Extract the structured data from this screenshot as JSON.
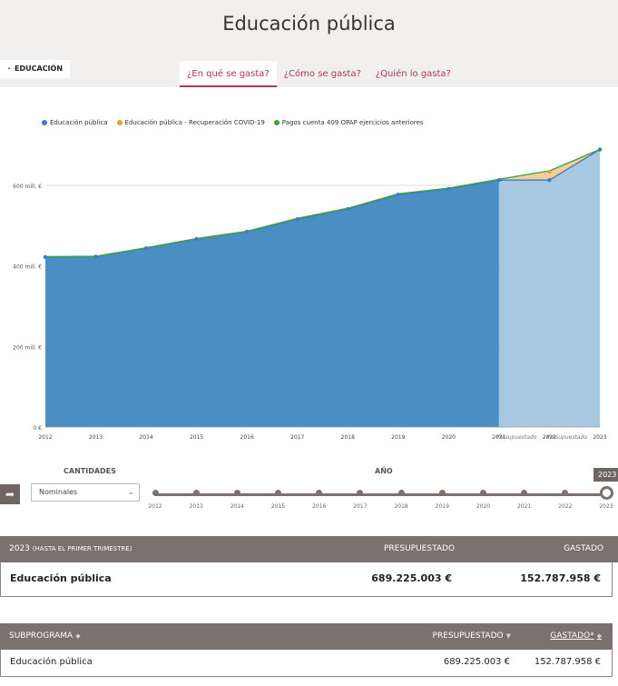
{
  "header": {
    "title": "Educación pública",
    "breadcrumb": "EDUCACIÓN",
    "tabs": [
      {
        "label": "¿En qué se gasta?",
        "active": true
      },
      {
        "label": "¿Cómo se gasta?",
        "active": false
      },
      {
        "label": "¿Quién lo gasta?",
        "active": false
      }
    ]
  },
  "colors": {
    "accent": "#b4345b",
    "series_main": "#3d7fc0",
    "series_covid": "#f59a2e",
    "series_opap": "#3fa33a",
    "area_actual": "#4a8ec4",
    "area_budget": "#a8c8e2",
    "panel": "#7b716e"
  },
  "chart_data": {
    "type": "area",
    "x": [
      "2012",
      "2013",
      "2014",
      "2015",
      "2016",
      "2017",
      "2018",
      "2019",
      "2020",
      "2021",
      "2022",
      "2023"
    ],
    "x_tick_labels": [
      "2012",
      "2013",
      "2014",
      "2015",
      "2016",
      "2017",
      "2018",
      "2019",
      "2020",
      "2021",
      "2022",
      "2023"
    ],
    "budget_label": "Presupuestado",
    "series": [
      {
        "name": "Educación pública",
        "values": [
          422,
          423,
          444,
          467,
          485,
          516,
          541,
          577,
          591,
          613,
          613,
          689
        ]
      },
      {
        "name": "Educación pública - Recuperación COVID-19",
        "values": [
          0,
          0,
          0,
          0,
          0,
          0,
          0,
          0,
          0,
          0,
          21,
          0
        ]
      },
      {
        "name": "Pagos cuenta 409 OPAP ejercicios anteriores",
        "values": [
          1,
          1,
          1,
          1,
          1,
          2,
          2,
          2,
          2,
          2,
          2,
          0
        ]
      }
    ],
    "y_ticks": [
      {
        "value": 0,
        "label": "0 €"
      },
      {
        "value": 200,
        "label": "200 mill. €"
      },
      {
        "value": 400,
        "label": "400 mill. €"
      },
      {
        "value": 600,
        "label": "600 mill. €"
      }
    ],
    "ylim": [
      0,
      700
    ],
    "grid": true,
    "legend": "top-left",
    "budgeted_from_index": 9
  },
  "controls": {
    "quantities_label": "CANTIDADES",
    "quantities_value": "Nominales",
    "year_label": "AÑO",
    "selected_year": "2023",
    "years": [
      "2012",
      "2013",
      "2014",
      "2015",
      "2016",
      "2017",
      "2018",
      "2019",
      "2020",
      "2021",
      "2022",
      "2023"
    ]
  },
  "summary": {
    "year": "2023",
    "year_note": "(HASTA EL PRIMER TRIMESTRE)",
    "col_budget": "PRESUPUESTADO",
    "col_spent": "GASTADO",
    "name": "Educación pública",
    "budget": "689.225.003 €",
    "spent": "152.787.958 €"
  },
  "table": {
    "col_name": "SUBPROGRAMA",
    "col_budget": "PRESUPUESTADO",
    "col_spent": "GASTADO*",
    "rows": [
      {
        "name": "Educación pública",
        "budget": "689.225.003 €",
        "spent": "152.787.958 €"
      }
    ]
  }
}
